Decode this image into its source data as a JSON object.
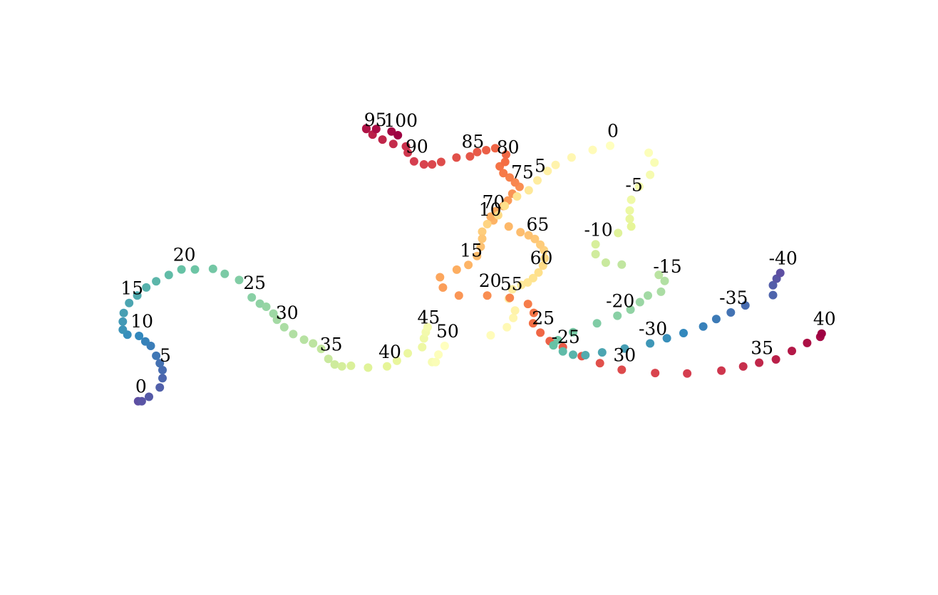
{
  "chart_data": [
    {
      "type": "scatter",
      "title": "",
      "xlabel": "",
      "ylabel": "",
      "axes_visible": false,
      "grid": false,
      "legend": "none",
      "colormap": "Spectral_r",
      "color_range": [
        0,
        100
      ],
      "label_every": 5,
      "tick_labels": [
        "0",
        "5",
        "10",
        "15",
        "20",
        "25",
        "30",
        "35",
        "40",
        "45",
        "50",
        "55",
        "60",
        "65",
        "70",
        "75",
        "80",
        "85",
        "90",
        "95",
        "100"
      ],
      "x": [
        2.2,
        2.6,
        3.4,
        4.6,
        4.9,
        4.9,
        4.6,
        4.2,
        3.6,
        3.0,
        2.3,
        1.0,
        0.5,
        0.5,
        0.6,
        1.2,
        2.1,
        3.1,
        4.2,
        5.6,
        7.0,
        8.5,
        10.5,
        11.8,
        13.4,
        14.8,
        15.7,
        16.4,
        17.2,
        17.6,
        18.4,
        19.4,
        20.6,
        21.6,
        22.5,
        23.3,
        24.0,
        24.8,
        25.8,
        27.7,
        29.8,
        30.9,
        32.1,
        33.7,
        33.9,
        34.1,
        34.3,
        34.8,
        35.2,
        35.5,
        36.2,
        41.3,
        43.1,
        43.8,
        44.0,
        43.3,
        43.7,
        44.7,
        45.4,
        46.0,
        46.6,
        47.1,
        47.3,
        47.2,
        46.8,
        46.2,
        45.5,
        44.6,
        43.3,
        41.6,
        41.3,
        41.9,
        42.7,
        43.2,
        43.7,
        44.5,
        44.0,
        43.4,
        42.7,
        42.3,
        42.9,
        43.0,
        41.8,
        40.8,
        39.8,
        39.0,
        37.5,
        35.8,
        34.8,
        33.9,
        32.8,
        32.1,
        31.9,
        30.5,
        29.3,
        28.2,
        27.5,
        27.5,
        28.6,
        30.3,
        31.0
      ],
      "y": [
        7.6,
        7.6,
        8.3,
        9.8,
        11.3,
        12.6,
        13.7,
        14.9,
        16.5,
        17.2,
        18.1,
        18.3,
        19.1,
        20.4,
        21.8,
        23.4,
        24.6,
        25.9,
        26.9,
        27.9,
        28.8,
        28.8,
        28.9,
        28.1,
        27.1,
        24.3,
        23.3,
        22.8,
        21.7,
        20.7,
        19.5,
        18.4,
        17.5,
        16.9,
        16.0,
        14.4,
        13.5,
        13.2,
        13.3,
        13.0,
        13.2,
        14.1,
        15.3,
        16.3,
        17.7,
        18.7,
        19.5,
        13.9,
        13.9,
        15.1,
        16.5,
        18.2,
        19.5,
        21.0,
        22.2,
        24.1,
        25.6,
        26.3,
        26.7,
        27.4,
        28.3,
        29.4,
        30.6,
        31.9,
        32.8,
        33.7,
        34.3,
        34.8,
        35.7,
        36.7,
        37.3,
        38.2,
        39.0,
        39.9,
        41.0,
        42.1,
        42.8,
        43.6,
        44.3,
        45.4,
        46.1,
        47.3,
        48.3,
        48.0,
        47.7,
        47.0,
        46.8,
        46.1,
        45.7,
        45.7,
        46.2,
        47.6,
        48.6,
        49.0,
        49.7,
        50.5,
        51.4,
        51.5,
        51.4,
        51.0,
        50.4
      ],
      "series_label_positions": [
        0,
        5,
        10,
        15,
        20,
        25,
        30,
        35,
        40,
        45,
        50,
        55,
        60,
        65,
        70,
        75,
        80,
        85,
        90,
        95,
        100
      ]
    },
    {
      "type": "scatter",
      "title": "",
      "xlabel": "",
      "ylabel": "",
      "axes_visible": false,
      "grid": false,
      "legend": "none",
      "colormap": "Spectral_r",
      "color_range": [
        -40,
        40
      ],
      "label_every": 5,
      "tick_labels": [
        "0",
        "5",
        "10",
        "15",
        "20",
        "25",
        "30",
        "35",
        "40",
        "-5",
        "-10",
        "-15",
        "-20",
        "-25",
        "-30",
        "-35",
        "-40"
      ],
      "x": [
        0.0,
        -2.4,
        -5.3,
        -7.5,
        -8.6,
        -10.0,
        -11.2,
        -12.8,
        -14.5,
        -15.4,
        -16.9,
        -17.6,
        -17.6,
        -17.8,
        -18.3,
        -19.5,
        -21.1,
        -23.4,
        -23.0,
        -20.8,
        -16.9,
        -13.8,
        -11.3,
        -10.5,
        -10.6,
        -9.6,
        -8.3,
        -6.5,
        -3.9,
        -1.4,
        1.6,
        6.2,
        10.6,
        15.3,
        18.3,
        20.5,
        22.8,
        25.0,
        27.1,
        28.9,
        29.1
      ],
      "neg_x": [
        2.4,
        5.3,
        6.1,
        5.5,
        4.0,
        2.9,
        2.7,
        2.7,
        2.9,
        1.1,
        -2.0,
        -2.0,
        -0.6,
        1.6,
        6.7,
        7.5,
        7.0,
        5.2,
        4.1,
        2.8,
        1.0,
        -1.8,
        -5.1,
        -7.2,
        -7.8,
        -6.5,
        -5.1,
        -3.4,
        -1.1,
        2.0,
        5.5,
        7.8,
        10.1,
        12.8,
        14.6,
        16.6,
        18.6,
        22.4,
        22.4,
        22.9,
        23.4
      ],
      "y": [
        40.2,
        39.3,
        37.7,
        36.1,
        34.8,
        32.8,
        30.7,
        29.4,
        27.4,
        25.4,
        23.5,
        21.9,
        20.4,
        18.7,
        16.7,
        14.8,
        13.8,
        12.2,
        10.0,
        8.3,
        8.3,
        7.8,
        6.5,
        4.6,
        2.4,
        0.4,
        -1.4,
        -2.7,
        -4.6,
        -6.1,
        -7.5,
        -8.2,
        -8.3,
        -7.7,
        -6.8,
        -6.0,
        -5.3,
        -3.5,
        -1.8,
        -0.5,
        0.2
      ],
      "neg_y": [
        39.9,
        38.7,
        36.6,
        34.0,
        31.5,
        28.7,
        26.4,
        24.6,
        23.0,
        21.6,
        19.2,
        17.1,
        15.3,
        14.9,
        12.7,
        11.4,
        9.1,
        8.3,
        6.9,
        5.3,
        4.0,
        2.4,
        0.5,
        -1.2,
        -2.3,
        -3.6,
        -4.3,
        -4.4,
        -3.8,
        -3.0,
        -1.9,
        -0.8,
        0.3,
        1.7,
        3.3,
        4.7,
        6.2,
        8.4,
        10.5,
        11.9,
        13.1
      ]
    }
  ]
}
